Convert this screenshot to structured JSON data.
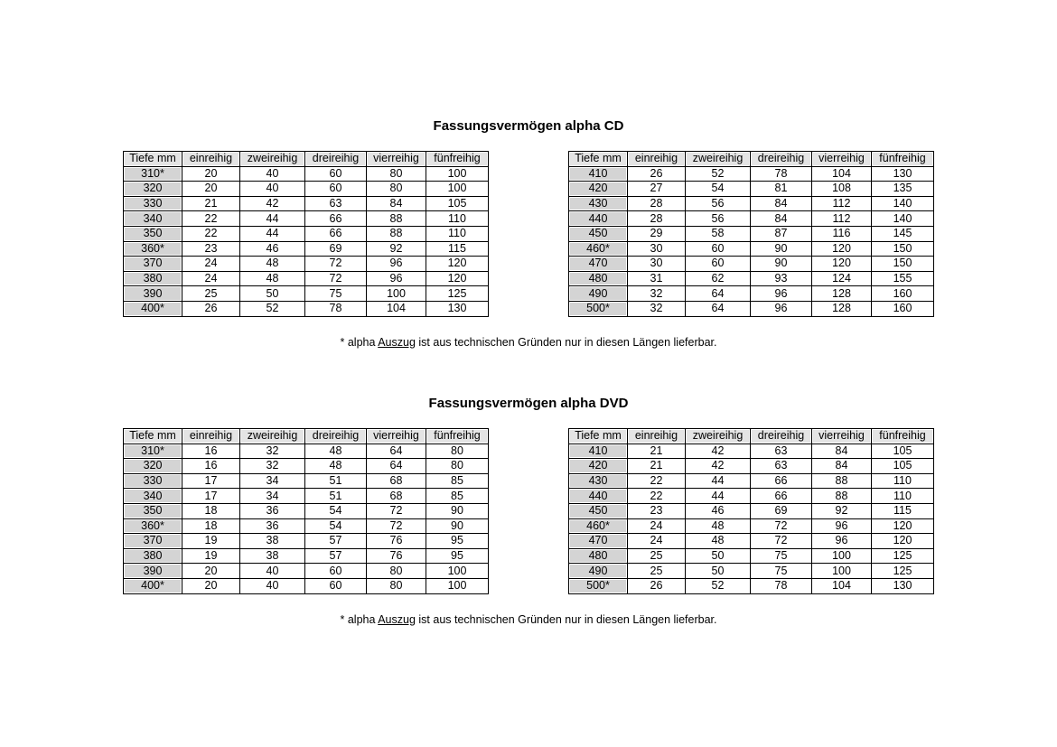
{
  "sections": [
    {
      "title": "Fassungsvermögen alpha CD",
      "headers": [
        "Tiefe mm",
        "einreihig",
        "zweireihig",
        "dreireihig",
        "vierreihig",
        "fünfreihig"
      ],
      "tables": [
        [
          [
            "310*",
            "20",
            "40",
            "60",
            "80",
            "100"
          ],
          [
            "320",
            "20",
            "40",
            "60",
            "80",
            "100"
          ],
          [
            "330",
            "21",
            "42",
            "63",
            "84",
            "105"
          ],
          [
            "340",
            "22",
            "44",
            "66",
            "88",
            "110"
          ],
          [
            "350",
            "22",
            "44",
            "66",
            "88",
            "110"
          ],
          [
            "360*",
            "23",
            "46",
            "69",
            "92",
            "115"
          ],
          [
            "370",
            "24",
            "48",
            "72",
            "96",
            "120"
          ],
          [
            "380",
            "24",
            "48",
            "72",
            "96",
            "120"
          ],
          [
            "390",
            "25",
            "50",
            "75",
            "100",
            "125"
          ],
          [
            "400*",
            "26",
            "52",
            "78",
            "104",
            "130"
          ]
        ],
        [
          [
            "410",
            "26",
            "52",
            "78",
            "104",
            "130"
          ],
          [
            "420",
            "27",
            "54",
            "81",
            "108",
            "135"
          ],
          [
            "430",
            "28",
            "56",
            "84",
            "112",
            "140"
          ],
          [
            "440",
            "28",
            "56",
            "84",
            "112",
            "140"
          ],
          [
            "450",
            "29",
            "58",
            "87",
            "116",
            "145"
          ],
          [
            "460*",
            "30",
            "60",
            "90",
            "120",
            "150"
          ],
          [
            "470",
            "30",
            "60",
            "90",
            "120",
            "150"
          ],
          [
            "480",
            "31",
            "62",
            "93",
            "124",
            "155"
          ],
          [
            "490",
            "32",
            "64",
            "96",
            "128",
            "160"
          ],
          [
            "500*",
            "32",
            "64",
            "96",
            "128",
            "160"
          ]
        ]
      ],
      "footnote": {
        "pre": "* alpha ",
        "link": "Auszug",
        "post": " ist aus technischen Gründen nur in diesen Längen lieferbar."
      }
    },
    {
      "title": "Fassungsvermögen alpha DVD",
      "headers": [
        "Tiefe mm",
        "einreihig",
        "zweireihig",
        "dreireihig",
        "vierreihig",
        "fünfreihig"
      ],
      "tables": [
        [
          [
            "310*",
            "16",
            "32",
            "48",
            "64",
            "80"
          ],
          [
            "320",
            "16",
            "32",
            "48",
            "64",
            "80"
          ],
          [
            "330",
            "17",
            "34",
            "51",
            "68",
            "85"
          ],
          [
            "340",
            "17",
            "34",
            "51",
            "68",
            "85"
          ],
          [
            "350",
            "18",
            "36",
            "54",
            "72",
            "90"
          ],
          [
            "360*",
            "18",
            "36",
            "54",
            "72",
            "90"
          ],
          [
            "370",
            "19",
            "38",
            "57",
            "76",
            "95"
          ],
          [
            "380",
            "19",
            "38",
            "57",
            "76",
            "95"
          ],
          [
            "390",
            "20",
            "40",
            "60",
            "80",
            "100"
          ],
          [
            "400*",
            "20",
            "40",
            "60",
            "80",
            "100"
          ]
        ],
        [
          [
            "410",
            "21",
            "42",
            "63",
            "84",
            "105"
          ],
          [
            "420",
            "21",
            "42",
            "63",
            "84",
            "105"
          ],
          [
            "430",
            "22",
            "44",
            "66",
            "88",
            "110"
          ],
          [
            "440",
            "22",
            "44",
            "66",
            "88",
            "110"
          ],
          [
            "450",
            "23",
            "46",
            "69",
            "92",
            "115"
          ],
          [
            "460*",
            "24",
            "48",
            "72",
            "96",
            "120"
          ],
          [
            "470",
            "24",
            "48",
            "72",
            "96",
            "120"
          ],
          [
            "480",
            "25",
            "50",
            "75",
            "100",
            "125"
          ],
          [
            "490",
            "25",
            "50",
            "75",
            "100",
            "125"
          ],
          [
            "500*",
            "26",
            "52",
            "78",
            "104",
            "130"
          ]
        ]
      ],
      "footnote": {
        "pre": "* alpha ",
        "link": "Auszug",
        "post": " ist aus technischen Gründen nur in diesen Längen lieferbar."
      }
    }
  ],
  "colors": {
    "key_column": "#d4d4d4",
    "header": "#e4e4e4",
    "border": "#000000"
  }
}
